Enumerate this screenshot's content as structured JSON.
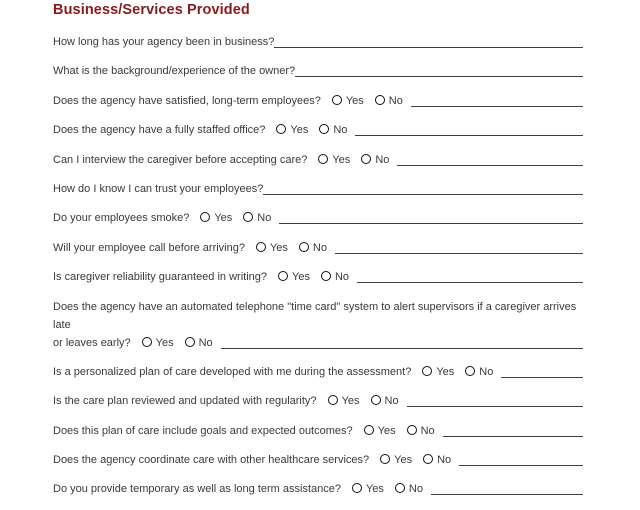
{
  "page": {
    "title": "Business/Services Provided"
  },
  "colors": {
    "title": "#8b1a1a",
    "text": "#3a3a3a",
    "line": "#3f3f3f"
  },
  "options": {
    "yes_label": "Yes",
    "no_label": "No"
  },
  "questions": [
    {
      "text": "How long has your agency been in business?",
      "type": "blank"
    },
    {
      "text": "What is the background/experience of the owner?",
      "type": "blank"
    },
    {
      "text": "Does the agency have satisfied, long-term employees?",
      "type": "yesno"
    },
    {
      "text": "Does the agency have a fully staffed office?",
      "type": "yesno"
    },
    {
      "text": "Can I interview the caregiver before accepting care?",
      "type": "yesno"
    },
    {
      "text": "How do I know I can trust your employees?",
      "type": "blank"
    },
    {
      "text": "Do your employees smoke?",
      "type": "yesno"
    },
    {
      "text": "Will your employee call before arriving?",
      "type": "yesno"
    },
    {
      "text": "Is caregiver reliability guaranteed in writing?",
      "type": "yesno"
    },
    {
      "text": "Does the agency have an automated telephone \"time card\" system to alert supervisors if a caregiver arrives late",
      "text_cont": "or leaves early?",
      "type": "yesno"
    },
    {
      "text": "Is a personalized plan of care developed with me during the assessment?",
      "type": "yesno"
    },
    {
      "text": "Is the care plan reviewed and updated with regularity?",
      "type": "yesno"
    },
    {
      "text": "Does this plan of care include goals and expected outcomes?",
      "type": "yesno"
    },
    {
      "text": "Does the agency coordinate care with other healthcare services?",
      "type": "yesno"
    },
    {
      "text": "Do you provide temporary as well as long term assistance?",
      "type": "yesno"
    }
  ]
}
